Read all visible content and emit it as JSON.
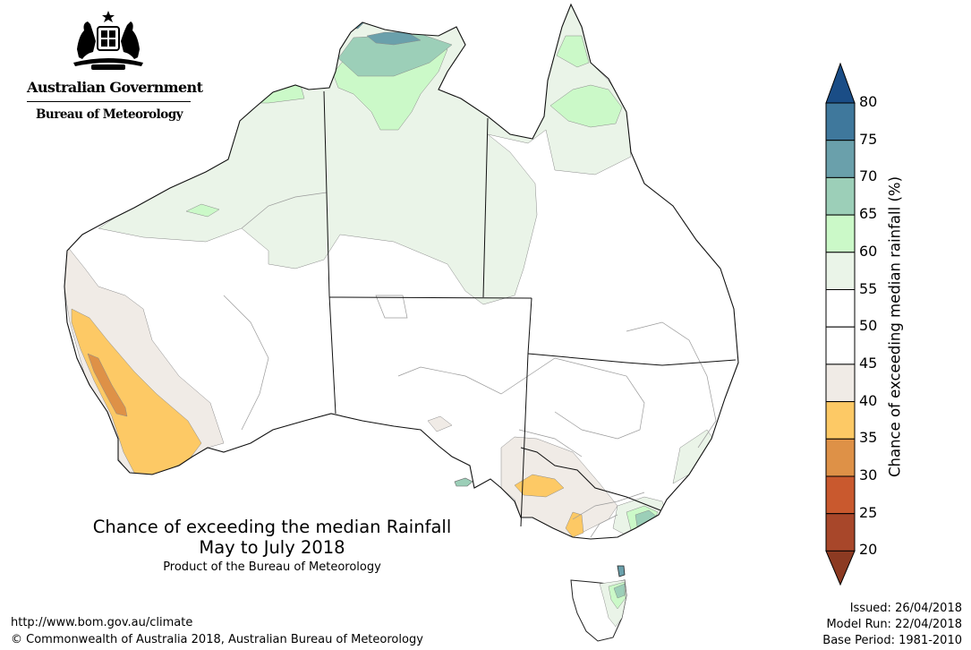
{
  "header": {
    "gov_name": "Australian Government",
    "agency_name": "Bureau of Meteorology"
  },
  "map": {
    "title_line1": "Chance of exceeding the median Rainfall",
    "title_line2": "May to July 2018",
    "product_note": "Product of the Bureau of Meteorology",
    "colors": {
      "20-25": "#a8472a",
      "25-30": "#c9592e",
      "30-35": "#de9147",
      "35-40": "#fdc965",
      "40-45": "#f0ebe6",
      "45-50": "#ffffff",
      "50-55": "#ffffff",
      "55-60": "#eaf4e8",
      "60-65": "#cbf9c8",
      "65-70": "#9ccfb8",
      "70-75": "#6aa0ab",
      "75-80": "#3f789c",
      ">80": "#1a4d86",
      "<20": "#8c3a22"
    }
  },
  "colorbar": {
    "title": "Chance of exceeding median rainfall (%)",
    "ticks": [
      "80",
      "75",
      "70",
      "65",
      "60",
      "55",
      "50",
      "45",
      "40",
      "35",
      "30",
      "25",
      "20"
    ]
  },
  "footer": {
    "url": "http://www.bom.gov.au/climate",
    "copyright": "© Commonwealth of Australia 2018, Australian Bureau of Meteorology",
    "issued": "Issued: 26/04/2018",
    "model_run": "Model Run: 22/04/2018",
    "base_period": "Base Period: 1981-2010"
  }
}
